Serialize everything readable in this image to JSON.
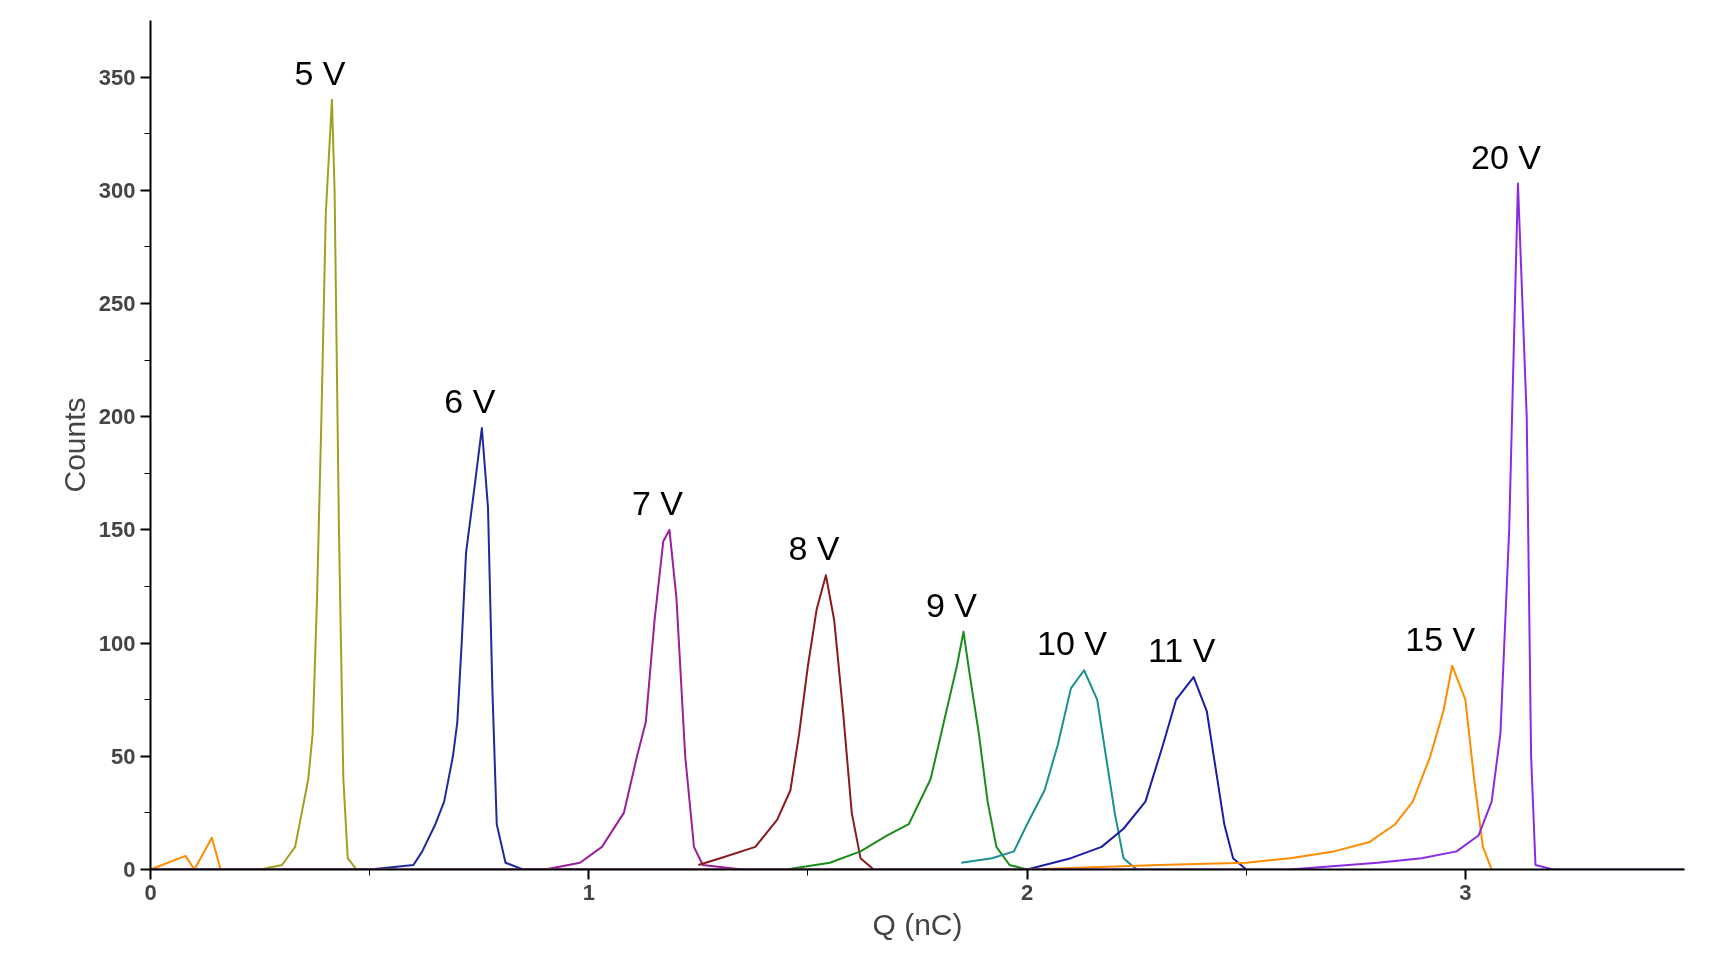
{
  "chart_data": {
    "type": "line",
    "xlabel": "Q (nC)",
    "ylabel": "Counts",
    "xlim": [
      0,
      3.5
    ],
    "ylim": [
      0,
      375
    ],
    "xticks": [
      0,
      1,
      2,
      3
    ],
    "yticks": [
      0,
      50,
      100,
      150,
      200,
      250,
      300,
      350
    ],
    "grid": false,
    "legend": false,
    "marker": "none",
    "line_style": "solid",
    "series": [
      {
        "name": "5 V",
        "color": "#a0a020",
        "x": [
          0.25,
          0.3,
          0.33,
          0.36,
          0.37,
          0.38,
          0.39,
          0.4,
          0.414,
          0.42,
          0.43,
          0.44,
          0.45,
          0.47,
          0.5
        ],
        "values": [
          0,
          2,
          10,
          40,
          60,
          120,
          200,
          290,
          340,
          300,
          150,
          40,
          5,
          0,
          0
        ]
      },
      {
        "name": "6 V",
        "color": "#1f2a9a",
        "x": [
          0,
          0.5,
          0.6,
          0.62,
          0.65,
          0.67,
          0.69,
          0.7,
          0.71,
          0.72,
          0.74,
          0.756,
          0.77,
          0.78,
          0.79,
          0.81,
          0.85,
          1.0
        ],
        "values": [
          0,
          0,
          2,
          8,
          20,
          30,
          50,
          65,
          100,
          140,
          170,
          195,
          160,
          80,
          20,
          3,
          0,
          0
        ]
      },
      {
        "name": "7 V",
        "color": "#9b1f9b",
        "x": [
          0.9,
          0.98,
          1.03,
          1.08,
          1.11,
          1.13,
          1.15,
          1.17,
          1.184,
          1.2,
          1.22,
          1.24,
          1.26,
          1.35
        ],
        "values": [
          0,
          3,
          10,
          25,
          50,
          65,
          110,
          145,
          150,
          120,
          50,
          10,
          2,
          0
        ]
      },
      {
        "name": "8 V",
        "color": "#8b1a1a",
        "x": [
          1.25,
          1.3,
          1.38,
          1.43,
          1.46,
          1.48,
          1.5,
          1.52,
          1.541,
          1.56,
          1.58,
          1.6,
          1.62,
          1.65
        ],
        "values": [
          2,
          5,
          10,
          22,
          35,
          60,
          90,
          115,
          130,
          110,
          70,
          25,
          5,
          0
        ]
      },
      {
        "name": "9 V",
        "color": "#1a8c1a",
        "x": [
          1.45,
          1.55,
          1.62,
          1.68,
          1.73,
          1.78,
          1.81,
          1.84,
          1.855,
          1.87,
          1.89,
          1.91,
          1.93,
          1.96,
          2.0
        ],
        "values": [
          0,
          3,
          8,
          15,
          20,
          40,
          65,
          90,
          105,
          85,
          60,
          30,
          10,
          2,
          0
        ]
      },
      {
        "name": "10 V",
        "color": "#1a9090",
        "x": [
          1.85,
          1.92,
          1.97,
          2.0,
          2.04,
          2.07,
          2.1,
          2.13,
          2.16,
          2.18,
          2.2,
          2.22,
          2.25
        ],
        "values": [
          3,
          5,
          8,
          20,
          35,
          55,
          80,
          88,
          75,
          50,
          25,
          5,
          0
        ]
      },
      {
        "name": "11 V",
        "color": "#1c1ca8",
        "x": [
          2.0,
          2.1,
          2.17,
          2.22,
          2.27,
          2.31,
          2.34,
          2.38,
          2.41,
          2.43,
          2.45,
          2.47,
          2.5
        ],
        "values": [
          0,
          5,
          10,
          18,
          30,
          55,
          75,
          85,
          70,
          45,
          20,
          5,
          0
        ]
      },
      {
        "name": "15 V",
        "color": "#ff8c00",
        "x": [
          0,
          0.08,
          0.1,
          0.14,
          0.16,
          1.0,
          2.0,
          2.3,
          2.5,
          2.6,
          2.7,
          2.78,
          2.84,
          2.88,
          2.92,
          2.95,
          2.97,
          3.0,
          3.02,
          3.04,
          3.06
        ],
        "values": [
          0,
          6,
          0,
          14,
          0,
          0,
          0,
          2,
          3,
          5,
          8,
          12,
          20,
          30,
          50,
          70,
          90,
          75,
          40,
          10,
          0
        ]
      },
      {
        "name": "20 V",
        "color": "#8a2be2",
        "x": [
          0,
          2.6,
          2.8,
          2.9,
          2.98,
          3.03,
          3.06,
          3.08,
          3.1,
          3.12,
          3.14,
          3.15,
          3.16,
          3.2,
          3.5
        ],
        "values": [
          0,
          0,
          3,
          5,
          8,
          15,
          30,
          60,
          150,
          303,
          200,
          50,
          2,
          0,
          0
        ]
      }
    ]
  }
}
